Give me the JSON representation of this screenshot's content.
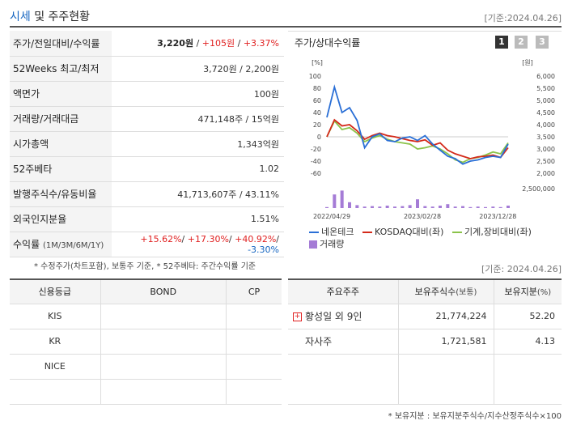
{
  "header": {
    "title_highlight": "시세",
    "title_rest": " 및 주주현황",
    "base_date": "[기준:2024.04.26]"
  },
  "stats": {
    "price_label": "주가/전일대비/수익률",
    "price": "3,220원",
    "sep": " / ",
    "change": "+105원",
    "change_rate": "+3.37%",
    "w52_label": "52Weeks 최고/최저",
    "w52_value": "3,720원 / 2,200원",
    "par_label": "액면가",
    "par_value": "100원",
    "volume_label": "거래량/거래대금",
    "volume_value": "471,148주 / 15억원",
    "mcap_label": "시가총액",
    "mcap_value": "1,343억원",
    "beta_label": "52주베타",
    "beta_value": "1.02",
    "shares_label": "발행주식수/유동비율",
    "shares_value": "41,713,607주 / 43.11%",
    "foreign_label": "외국인지분율",
    "foreign_value": "1.51%",
    "return_label": "수익률",
    "return_label_sub": "(1M/3M/6M/1Y)",
    "return_1m": "+15.62%",
    "return_3m": "+17.30%",
    "return_6m": "+40.92%",
    "return_1y": "-3.30%",
    "slash": "/ ",
    "footnote": "* 수정주가(차트포함), 보통주 기준, * 52주베타: 주간수익률 기준"
  },
  "chart_panel": {
    "title": "주가/상대수익률",
    "tabs": [
      "1",
      "2",
      "3"
    ]
  },
  "chart_data": {
    "type": "line",
    "left_axis_unit": "[%]",
    "right_axis_unit": "[원]",
    "left_ticks": [
      "100",
      "80",
      "60",
      "40",
      "20",
      "0",
      "-20",
      "-40",
      "-60"
    ],
    "right_ticks": [
      "6,000",
      "5,500",
      "5,000",
      "4,500",
      "4,000",
      "3,500",
      "3,000",
      "2,500",
      "2,000"
    ],
    "volume_tick": "2,500,000",
    "x_labels": [
      "2022/04/29",
      "2023/02/28",
      "2023/12/28"
    ],
    "ylim_left": [
      -60,
      100
    ],
    "series": [
      {
        "name": "네온테크",
        "color": "#2a6fd6",
        "values": [
          32,
          82,
          40,
          48,
          27,
          -18,
          0,
          5,
          -6,
          -8,
          -2,
          0,
          -6,
          2,
          -12,
          -22,
          -32,
          -36,
          -45,
          -40,
          -38,
          -34,
          -32,
          -34,
          -12
        ]
      },
      {
        "name": "KOSDAQ대비(좌)",
        "color": "#d42a1a",
        "values": [
          0,
          28,
          18,
          20,
          10,
          -4,
          2,
          6,
          2,
          0,
          -3,
          -6,
          -8,
          -5,
          -14,
          -10,
          -22,
          -28,
          -32,
          -36,
          -33,
          -32,
          -30,
          -34,
          -18
        ]
      },
      {
        "name": "기계,장비대비(좌)",
        "color": "#8bc34a",
        "values": [
          0,
          26,
          12,
          15,
          6,
          -8,
          -2,
          2,
          -4,
          -8,
          -10,
          -12,
          -20,
          -18,
          -15,
          -20,
          -28,
          -38,
          -42,
          -36,
          -34,
          -30,
          -25,
          -28,
          -10
        ]
      }
    ],
    "volume": {
      "name": "거래량",
      "color": "#a57cd6",
      "values": [
        0.2,
        2.8,
        3.6,
        1.2,
        0.6,
        0.3,
        0.4,
        0.3,
        0.5,
        0.3,
        0.4,
        0.6,
        1.8,
        0.4,
        0.3,
        0.5,
        0.8,
        0.3,
        0.4,
        0.2,
        0.3,
        0.2,
        0.3,
        0.2,
        0.5
      ]
    }
  },
  "credit": {
    "base_date": "[기준: 2024.04.26]",
    "headers": [
      "신용등급",
      "BOND",
      "CP"
    ],
    "rows": [
      [
        "KIS",
        "",
        ""
      ],
      [
        "KR",
        "",
        ""
      ],
      [
        "NICE",
        "",
        ""
      ],
      [
        "",
        "",
        ""
      ]
    ]
  },
  "holders": {
    "headers": [
      "주요주주",
      "보유주식수",
      "(보통)",
      "보유지분",
      "(%)"
    ],
    "rows": [
      {
        "name": "황성일 외 9인",
        "shares": "21,774,224",
        "pct": "52.20"
      },
      {
        "name": "자사주",
        "shares": "1,721,581",
        "pct": "4.13"
      }
    ],
    "footnote": "* 보유지분 : 보유지분주식수/지수산정주식수×100"
  }
}
